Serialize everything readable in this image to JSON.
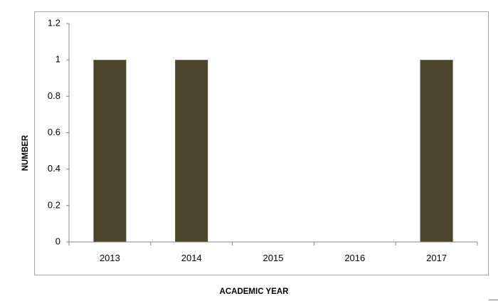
{
  "chart_data": {
    "type": "bar",
    "categories": [
      "2013",
      "2014",
      "2015",
      "2016",
      "2017"
    ],
    "values": [
      1,
      1,
      0,
      0,
      1
    ],
    "xlabel": "ACADEMIC YEAR",
    "ylabel": "NUMBER",
    "ylim": [
      0,
      1.2
    ],
    "yticks": [
      0,
      0.2,
      0.4,
      0.6,
      0.8,
      1,
      1.2
    ],
    "ytick_labels": [
      "0",
      "0.2",
      "0.4",
      "0.6",
      "0.8",
      "1",
      "1.2"
    ],
    "grid": false,
    "legend": "none",
    "bar_color": "#4b452c",
    "axis_color": "#868686"
  }
}
